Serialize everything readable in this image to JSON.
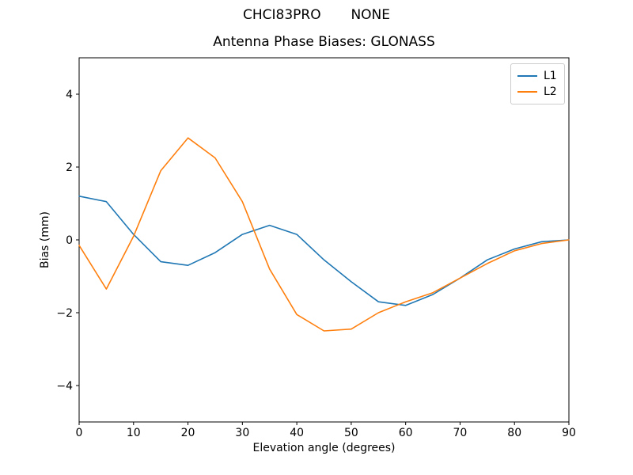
{
  "figure": {
    "suptitle": "CHCI83PRO       NONE"
  },
  "chart_data": {
    "type": "line",
    "title": "Antenna Phase Biases: GLONASS",
    "xlabel": "Elevation angle (degrees)",
    "ylabel": "Bias (mm)",
    "xlim": [
      0,
      90
    ],
    "ylim": [
      -5,
      5
    ],
    "xticks": [
      0,
      10,
      20,
      30,
      40,
      50,
      60,
      70,
      80,
      90
    ],
    "yticks": [
      -4,
      -2,
      0,
      2,
      4
    ],
    "grid": false,
    "legend_position": "upper right",
    "x": [
      0,
      5,
      10,
      15,
      20,
      25,
      30,
      35,
      40,
      45,
      50,
      55,
      60,
      65,
      70,
      75,
      80,
      85,
      90
    ],
    "series": [
      {
        "name": "L1",
        "color": "#1f77b4",
        "values": [
          1.2,
          1.05,
          0.15,
          -0.6,
          -0.7,
          -0.35,
          0.15,
          0.4,
          0.15,
          -0.55,
          -1.15,
          -1.7,
          -1.8,
          -1.5,
          -1.05,
          -0.55,
          -0.25,
          -0.05,
          0.0
        ]
      },
      {
        "name": "L2",
        "color": "#ff7f0e",
        "values": [
          -0.15,
          -1.35,
          0.1,
          1.9,
          2.8,
          2.25,
          1.05,
          -0.8,
          -2.05,
          -2.5,
          -2.45,
          -2.0,
          -1.7,
          -1.45,
          -1.05,
          -0.65,
          -0.3,
          -0.1,
          0.0
        ]
      }
    ]
  }
}
